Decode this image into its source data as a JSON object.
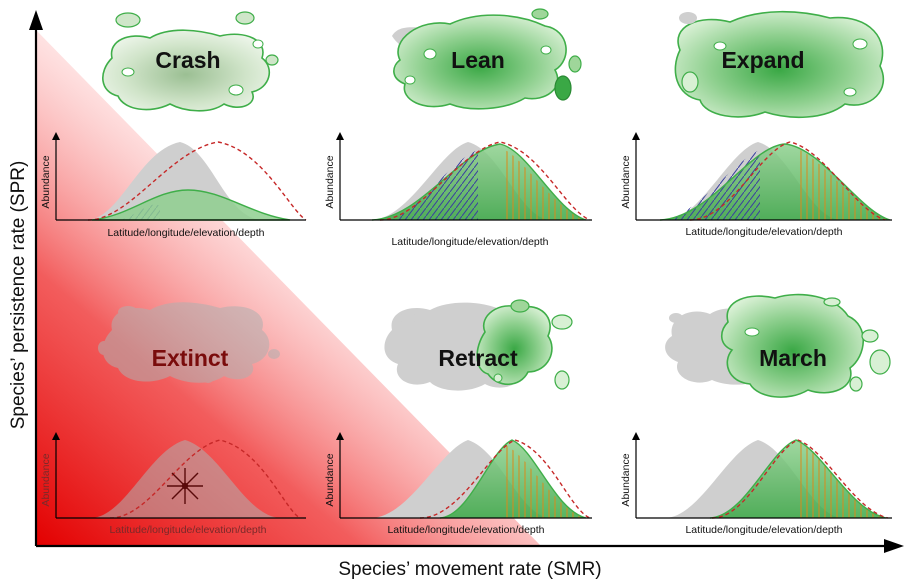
{
  "axes": {
    "x_label": "Species’ movement rate (SMR)",
    "y_label": "Species’ persistence  rate (SPR)"
  },
  "panel_axis": {
    "x_label": "Latitude/longitude/elevation/depth",
    "y_label": "Abundance"
  },
  "panels": [
    {
      "id": "crash",
      "title": "Crash",
      "row": "top",
      "col": 1
    },
    {
      "id": "lean",
      "title": "Lean",
      "row": "top",
      "col": 2
    },
    {
      "id": "expand",
      "title": "Expand",
      "row": "top",
      "col": 3
    },
    {
      "id": "extinct",
      "title": "Extinct",
      "row": "bottom",
      "col": 1
    },
    {
      "id": "retract",
      "title": "Retract",
      "row": "bottom",
      "col": 2
    },
    {
      "id": "march",
      "title": "March",
      "row": "bottom",
      "col": 3
    }
  ],
  "colors": {
    "historical_range": "#cfcfcf",
    "current_range": "#3fae49",
    "shifted_envelope": "#c62828",
    "extinct_gradient": "#e30000",
    "hatch_leading": "#d98a1a",
    "hatch_trailing": "#3a3f9f"
  }
}
